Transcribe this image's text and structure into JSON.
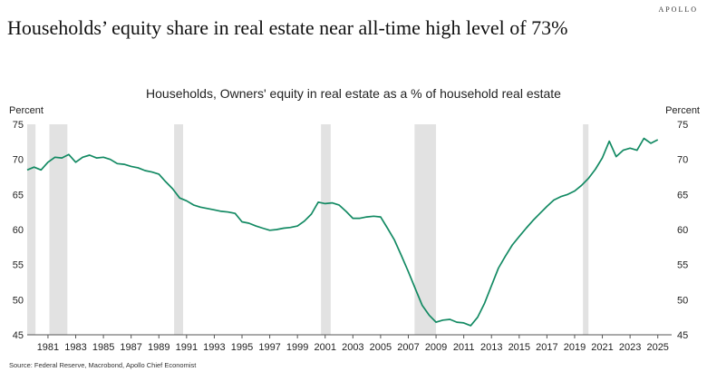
{
  "header": {
    "brand": "APOLLO",
    "headline": "Households’ equity share in real estate near all-time high level of 73%"
  },
  "footer": {
    "source": "Source: Federal Reserve, Macrobond, Apollo Chief Economist"
  },
  "colors": {
    "line": "#138a63",
    "recession": "#e2e2e2",
    "axis": "#555555"
  },
  "chart_data": {
    "type": "line",
    "title": "Households, Owners' equity in real estate as a % of household real estate",
    "ylabel_left": "Percent",
    "ylabel_right": "Percent",
    "xlim": [
      1980.0,
      2026.5
    ],
    "ylim": [
      45,
      75
    ],
    "yticks": [
      45,
      50,
      55,
      60,
      65,
      70,
      75
    ],
    "xticks": [
      1981,
      1983,
      1985,
      1987,
      1989,
      1991,
      1993,
      1995,
      1997,
      1999,
      2001,
      2003,
      2005,
      2007,
      2009,
      2011,
      2013,
      2015,
      2017,
      2019,
      2021,
      2023,
      2025
    ],
    "recessions": [
      [
        1980.0,
        1980.6
      ],
      [
        1981.6,
        1982.9
      ],
      [
        1990.6,
        1991.25
      ],
      [
        2001.2,
        2001.9
      ],
      [
        2007.95,
        2009.5
      ],
      [
        2020.1,
        2020.5
      ]
    ],
    "series": [
      {
        "name": "Owners' equity in real estate (% of household real estate)",
        "x": [
          1980.0,
          1980.5,
          1981.0,
          1981.5,
          1982.0,
          1982.5,
          1983.0,
          1983.5,
          1984.0,
          1984.5,
          1985.0,
          1985.5,
          1986.0,
          1986.5,
          1987.0,
          1987.5,
          1988.0,
          1988.5,
          1989.0,
          1989.5,
          1990.0,
          1990.5,
          1991.0,
          1991.5,
          1992.0,
          1992.5,
          1993.0,
          1993.5,
          1994.0,
          1994.5,
          1995.0,
          1995.5,
          1996.0,
          1996.5,
          1997.0,
          1997.5,
          1998.0,
          1998.5,
          1999.0,
          1999.5,
          2000.0,
          2000.5,
          2001.0,
          2001.5,
          2002.0,
          2002.5,
          2003.0,
          2003.5,
          2004.0,
          2004.5,
          2005.0,
          2005.5,
          2006.0,
          2006.5,
          2007.0,
          2007.5,
          2008.0,
          2008.5,
          2009.0,
          2009.5,
          2010.0,
          2010.5,
          2011.0,
          2011.5,
          2012.0,
          2012.5,
          2013.0,
          2013.5,
          2014.0,
          2014.5,
          2015.0,
          2015.5,
          2016.0,
          2016.5,
          2017.0,
          2017.5,
          2018.0,
          2018.5,
          2019.0,
          2019.5,
          2020.0,
          2020.5,
          2021.0,
          2021.5,
          2022.0,
          2022.5,
          2023.0,
          2023.5,
          2024.0,
          2024.5,
          2025.0,
          2025.5
        ],
        "y": [
          68.5,
          68.9,
          68.5,
          69.6,
          70.3,
          70.2,
          70.7,
          69.6,
          70.3,
          70.6,
          70.2,
          70.3,
          70.0,
          69.4,
          69.3,
          69.0,
          68.8,
          68.4,
          68.2,
          67.9,
          66.8,
          65.8,
          64.5,
          64.1,
          63.5,
          63.2,
          63.0,
          62.8,
          62.6,
          62.5,
          62.3,
          61.1,
          60.9,
          60.5,
          60.2,
          59.9,
          60.0,
          60.2,
          60.3,
          60.5,
          61.2,
          62.2,
          63.9,
          63.7,
          63.8,
          63.5,
          62.6,
          61.6,
          61.6,
          61.8,
          61.9,
          61.8,
          60.2,
          58.5,
          56.3,
          54.0,
          51.6,
          49.2,
          47.8,
          46.8,
          47.1,
          47.2,
          46.8,
          46.7,
          46.3,
          47.5,
          49.5,
          52.0,
          54.5,
          56.2,
          57.8,
          59.0,
          60.2,
          61.3,
          62.3,
          63.3,
          64.2,
          64.7,
          65.0,
          65.5,
          66.3,
          67.3,
          68.6,
          70.2,
          72.6,
          70.4,
          71.3,
          71.6,
          71.3,
          73.0,
          72.3,
          72.8
        ]
      }
    ]
  }
}
